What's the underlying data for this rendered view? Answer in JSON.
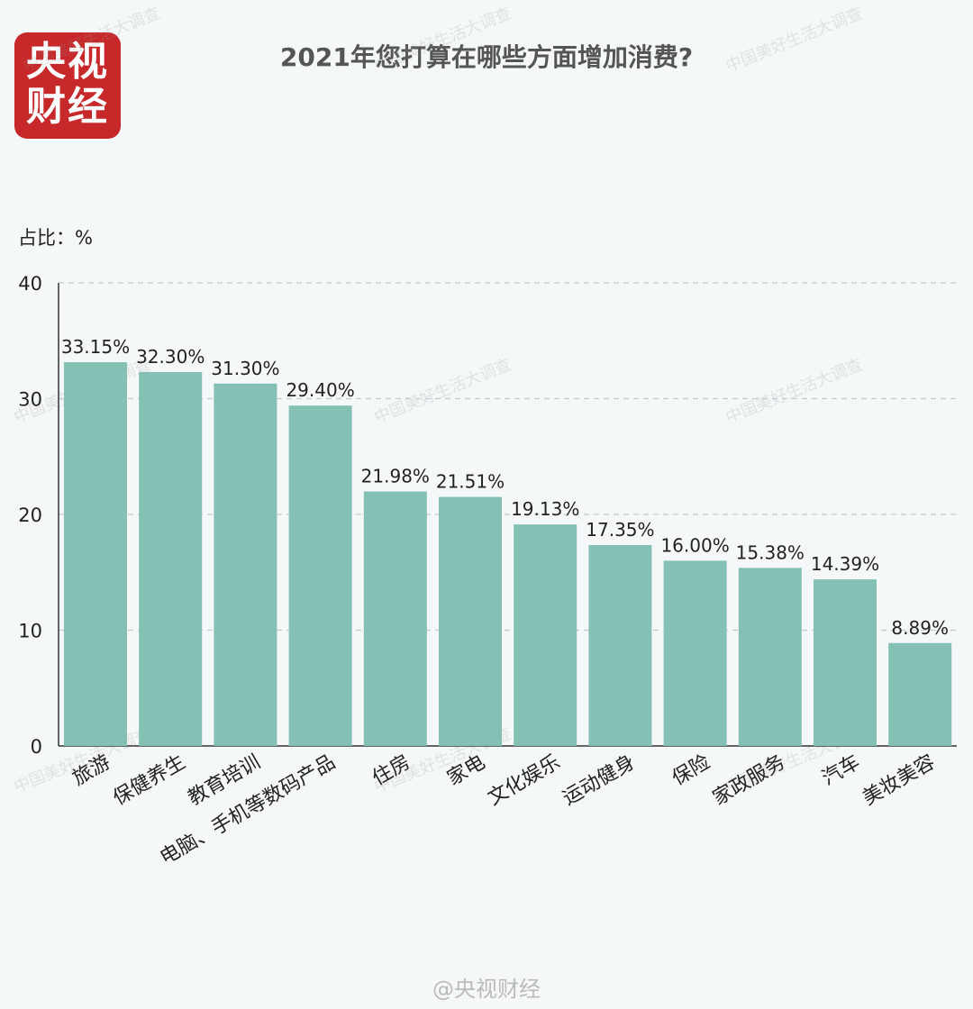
{
  "brand": {
    "logo_line1": "央视",
    "logo_line2": "财经",
    "logo_color": "#c7282a"
  },
  "title": "2021年您打算在哪些方面增加消费?",
  "unit_label": "占比：%",
  "watermark": "中国美好生活大调查",
  "footer_watermark": "@央视财经",
  "chart_data": {
    "type": "bar",
    "categories": [
      "旅游",
      "保健养生",
      "教育培训",
      "电脑、手机等数码产品",
      "住房",
      "家电",
      "文化娱乐",
      "运动健身",
      "保险",
      "家政服务",
      "汽车",
      "美妆美容"
    ],
    "values": [
      33.15,
      32.3,
      31.3,
      29.4,
      21.98,
      21.51,
      19.13,
      17.35,
      16.0,
      15.38,
      14.39,
      8.89
    ],
    "value_labels": [
      "33.15%",
      "32.30%",
      "31.30%",
      "29.40%",
      "21.98%",
      "21.51%",
      "19.13%",
      "17.35%",
      "16.00%",
      "15.38%",
      "14.39%",
      "8.89%"
    ],
    "yticks": [
      "0",
      "10",
      "20",
      "30",
      "40"
    ],
    "ylim": [
      0,
      40
    ],
    "grid": true,
    "bar_color": "#84c0b4"
  }
}
